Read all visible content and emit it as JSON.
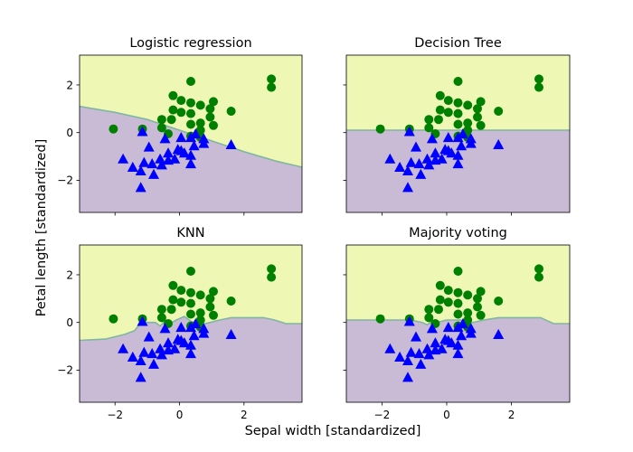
{
  "chart_data": {
    "type": "scatter",
    "kind": "decision-boundary-grid",
    "xlabel": "Sepal width [standardized]",
    "ylabel": "Petal length [standardized]",
    "xlim": [
      -3.1,
      3.8
    ],
    "ylim": [
      -3.35,
      3.25
    ],
    "xticks": [
      -2,
      0,
      2
    ],
    "yticks": [
      -2,
      0,
      2
    ],
    "share_axes": true,
    "colors": {
      "region_class0": "#c9bbd5",
      "region_class1": "#eff7b5",
      "boundary": "#7fb6a0",
      "class0_marker": "#0000ff",
      "class1_marker": "#008000"
    },
    "markers": {
      "class0": "triangle",
      "class1": "circle"
    },
    "points": {
      "class0": [
        [
          -1.75,
          -1.1
        ],
        [
          -1.45,
          -1.45
        ],
        [
          -1.2,
          -2.3
        ],
        [
          -1.2,
          -1.6
        ],
        [
          -1.15,
          0.05
        ],
        [
          -1.1,
          -1.25
        ],
        [
          -0.95,
          -0.6
        ],
        [
          -0.85,
          -1.3
        ],
        [
          -0.8,
          -1.75
        ],
        [
          -0.6,
          -1.1
        ],
        [
          -0.55,
          -1.35
        ],
        [
          -0.45,
          -0.25
        ],
        [
          -0.35,
          -0.85
        ],
        [
          -0.35,
          -1.15
        ],
        [
          -0.15,
          -1.1
        ],
        [
          -0.05,
          -0.7
        ],
        [
          0.05,
          -0.2
        ],
        [
          0.05,
          -0.75
        ],
        [
          0.15,
          -0.85
        ],
        [
          0.35,
          -0.95
        ],
        [
          0.35,
          -1.3
        ],
        [
          0.35,
          -0.2
        ],
        [
          0.45,
          -0.55
        ],
        [
          0.5,
          -0.05
        ],
        [
          0.75,
          -0.25
        ],
        [
          0.75,
          -0.45
        ],
        [
          1.6,
          -0.5
        ]
      ],
      "class1": [
        [
          -2.05,
          0.15
        ],
        [
          -1.15,
          0.15
        ],
        [
          -0.55,
          0.55
        ],
        [
          -0.55,
          0.2
        ],
        [
          -0.35,
          -0.05
        ],
        [
          -0.25,
          0.55
        ],
        [
          -0.2,
          0.95
        ],
        [
          -0.2,
          1.55
        ],
        [
          0.05,
          0.85
        ],
        [
          0.05,
          1.35
        ],
        [
          0.35,
          2.15
        ],
        [
          0.35,
          1.25
        ],
        [
          0.35,
          0.8
        ],
        [
          0.35,
          0.35
        ],
        [
          0.35,
          -0.15
        ],
        [
          0.65,
          1.15
        ],
        [
          0.65,
          0.4
        ],
        [
          0.65,
          0.1
        ],
        [
          0.65,
          -0.2
        ],
        [
          0.95,
          1.0
        ],
        [
          0.95,
          0.65
        ],
        [
          1.05,
          0.3
        ],
        [
          1.05,
          1.3
        ],
        [
          1.6,
          0.9
        ],
        [
          2.85,
          2.25
        ],
        [
          2.85,
          1.9
        ]
      ]
    },
    "panels": [
      {
        "title": "Logistic regression",
        "boundary": [
          [
            -3.1,
            1.1
          ],
          [
            -2.0,
            0.85
          ],
          [
            -1.0,
            0.55
          ],
          [
            0.0,
            0.1
          ],
          [
            1.0,
            -0.35
          ],
          [
            2.0,
            -0.8
          ],
          [
            3.0,
            -1.2
          ],
          [
            3.8,
            -1.45
          ]
        ]
      },
      {
        "title": "Decision Tree",
        "boundary": [
          [
            -3.1,
            0.1
          ],
          [
            3.8,
            0.1
          ]
        ]
      },
      {
        "title": "KNN",
        "boundary": [
          [
            -3.1,
            -0.75
          ],
          [
            -2.3,
            -0.7
          ],
          [
            -2.0,
            -0.6
          ],
          [
            -1.7,
            -0.5
          ],
          [
            -1.4,
            -0.35
          ],
          [
            -1.25,
            -0.1
          ],
          [
            -1.0,
            0.0
          ],
          [
            -0.75,
            0.0
          ],
          [
            -0.6,
            -0.15
          ],
          [
            -0.45,
            0.05
          ],
          [
            -0.3,
            -0.05
          ],
          [
            -0.1,
            0.1
          ],
          [
            0.15,
            0.25
          ],
          [
            0.35,
            0.05
          ],
          [
            0.65,
            -0.1
          ],
          [
            0.95,
            0.0
          ],
          [
            1.25,
            0.1
          ],
          [
            1.6,
            0.2
          ],
          [
            2.6,
            0.2
          ],
          [
            2.95,
            0.1
          ],
          [
            3.3,
            -0.05
          ],
          [
            3.8,
            -0.05
          ]
        ]
      },
      {
        "title": "Majority voting",
        "boundary": [
          [
            -3.1,
            0.1
          ],
          [
            -1.1,
            0.1
          ],
          [
            -0.75,
            0.0
          ],
          [
            -0.6,
            -0.1
          ],
          [
            -0.45,
            0.05
          ],
          [
            -0.3,
            0.0
          ],
          [
            0.0,
            0.1
          ],
          [
            0.45,
            0.1
          ],
          [
            0.65,
            -0.05
          ],
          [
            1.15,
            0.1
          ],
          [
            1.6,
            0.2
          ],
          [
            2.9,
            0.2
          ],
          [
            3.3,
            -0.05
          ],
          [
            3.8,
            -0.05
          ]
        ]
      }
    ]
  }
}
